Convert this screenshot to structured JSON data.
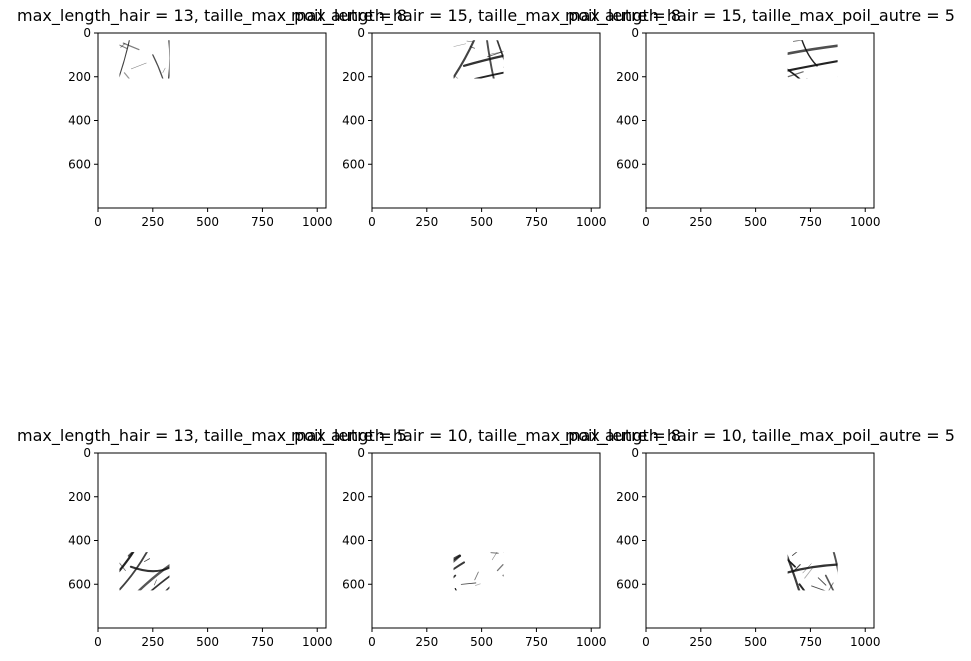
{
  "figure": {
    "background": "#ffffff",
    "hair_color": "#111111"
  },
  "chart_data": [
    {
      "type": "image",
      "title": "max_length_hair = 13, taille_max_poil_autre = 8",
      "xlim": [
        0,
        1040
      ],
      "ylim": [
        800,
        0
      ],
      "xticks": [
        0,
        250,
        500,
        750,
        1000
      ],
      "yticks": [
        0,
        200,
        400,
        600
      ],
      "variant": 0
    },
    {
      "type": "image",
      "title": "max_length_hair = 15, taille_max_poil_autre = 8",
      "xlim": [
        0,
        1040
      ],
      "ylim": [
        800,
        0
      ],
      "xticks": [
        0,
        250,
        500,
        750,
        1000
      ],
      "yticks": [
        0,
        200,
        400,
        600
      ],
      "variant": 1
    },
    {
      "type": "image",
      "title": "max_length_hair = 15, taille_max_poil_autre = 5",
      "xlim": [
        0,
        1040
      ],
      "ylim": [
        800,
        0
      ],
      "xticks": [
        0,
        250,
        500,
        750,
        1000
      ],
      "yticks": [
        0,
        200,
        400,
        600
      ],
      "variant": 2
    },
    {
      "type": "image",
      "title": "max_length_hair = 13, taille_max_poil_autre = 5",
      "xlim": [
        0,
        1040
      ],
      "ylim": [
        800,
        0
      ],
      "xticks": [
        0,
        250,
        500,
        750,
        1000
      ],
      "yticks": [
        0,
        200,
        400,
        600
      ],
      "variant": 3
    },
    {
      "type": "image",
      "title": "max_length_hair = 10, taille_max_poil_autre = 8",
      "xlim": [
        0,
        1040
      ],
      "ylim": [
        800,
        0
      ],
      "xticks": [
        0,
        250,
        500,
        750,
        1000
      ],
      "yticks": [
        0,
        200,
        400,
        600
      ],
      "variant": 4
    },
    {
      "type": "image",
      "title": "max_length_hair = 10, taille_max_poil_autre = 5",
      "xlim": [
        0,
        1040
      ],
      "ylim": [
        800,
        0
      ],
      "xticks": [
        0,
        250,
        500,
        750,
        1000
      ],
      "yticks": [
        0,
        200,
        400,
        600
      ],
      "variant": 5
    }
  ]
}
